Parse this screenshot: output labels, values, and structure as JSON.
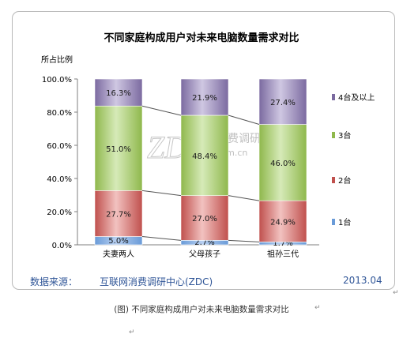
{
  "chart_data": {
    "type": "bar",
    "stacked": true,
    "title": "不同家庭构成用户对未来电脑数量需求对比",
    "ylabel": "所占比例",
    "ylim": [
      0,
      100
    ],
    "yticks": [
      "0.0%",
      "20.0%",
      "40.0%",
      "60.0%",
      "80.0%",
      "100.0%"
    ],
    "categories": [
      "夫妻两人",
      "父母孩子",
      "祖孙三代"
    ],
    "series": [
      {
        "name": "1台",
        "values": [
          5.0,
          2.7,
          1.7
        ],
        "labels": [
          "5.0%",
          "2.7%",
          "1.7%"
        ],
        "color": "#6a9bd8",
        "light": "#b7cff0"
      },
      {
        "name": "2台",
        "values": [
          27.7,
          27.0,
          24.9
        ],
        "labels": [
          "27.7%",
          "27.0%",
          "24.9%"
        ],
        "color": "#c0504d",
        "light": "#f2c2c0"
      },
      {
        "name": "3台",
        "values": [
          51.0,
          48.4,
          46.0
        ],
        "labels": [
          "51.0%",
          "48.4%",
          "46.0%"
        ],
        "color": "#8fb84c",
        "light": "#d6eab8"
      },
      {
        "name": "4台及以上",
        "values": [
          16.3,
          21.9,
          27.4
        ],
        "labels": [
          "16.3%",
          "21.9%",
          "27.4%"
        ],
        "color": "#7b6aa0",
        "light": "#cfc7e2"
      }
    ],
    "legend_position": "right",
    "grid": false
  },
  "watermark": {
    "main": "ZDC",
    "cn": "互联网消费调研中心",
    "url": "zdc.zol.com.cn"
  },
  "footer": {
    "source_label": "数据来源：",
    "source_value": "互联网消费调研中心(ZDC)",
    "date": "2013.04"
  },
  "caption": "(图) 不同家庭构成用户对未来电脑数量需求对比",
  "marks": {
    "pilcrow": "↵"
  }
}
